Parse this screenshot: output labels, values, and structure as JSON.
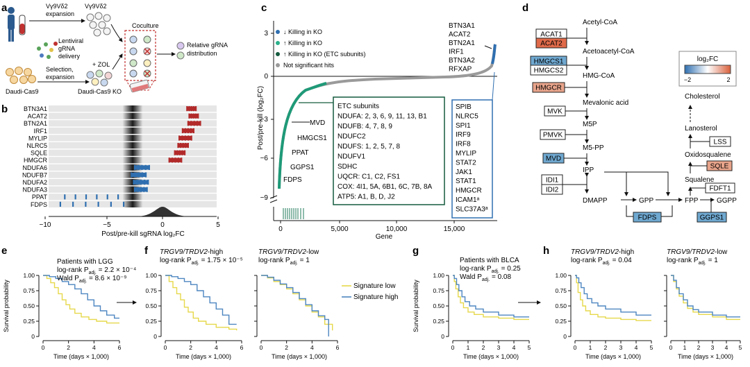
{
  "panel_labels": {
    "a": "a",
    "b": "b",
    "c": "c",
    "d": "d",
    "e": "e",
    "f": "f",
    "g": "g",
    "h": "h"
  },
  "panel_a": {
    "expansion1": [
      "Vγ9Vδ2",
      "expansion"
    ],
    "lentiviral": [
      "Lentiviral",
      "gRNA",
      "delivery"
    ],
    "selection": [
      "Selection,",
      "expansion"
    ],
    "zol": "+ ZOL",
    "daudi_cas9": "Daudi-Cas9",
    "daudi_ko": "Daudi-Cas9 KO",
    "coculture": "Coculture",
    "relative": [
      "Relative gRNA",
      "distribution"
    ],
    "vg_top": "Vγ9Vδ2"
  },
  "panel_b": {
    "genes": [
      "BTN3A1",
      "ACAT2",
      "BTN2A1",
      "IRF1",
      "MYLIP",
      "NLRC5",
      "SQLE",
      "HMGCR",
      "NDUFA6",
      "NDUFB7",
      "NDUFA2",
      "NDUFA3",
      "PPAT",
      "FDPS"
    ],
    "xlabel": "Post/pre-kill sgRNA log₂FC",
    "ticks": [
      "−10",
      "−5",
      "0",
      "5"
    ]
  },
  "panel_c": {
    "ylabel": "Post/pre-kill (log₂FC)",
    "xlabel": "Gene",
    "yticks": [
      "3",
      "0",
      "−3",
      "−6",
      "−9"
    ],
    "xticks": [
      "0",
      "5,000",
      "10,000",
      "15,000"
    ],
    "legend": [
      "↓ Killing in KO",
      "↑ Killing in KO",
      "↑ Killing in KO (ETC subunits)",
      "Not significant hits"
    ],
    "top_genes": [
      "BTN3A1",
      "ACAT2",
      "BTN2A1",
      "IRF1",
      "BTN3A2",
      "RFXAP"
    ],
    "low_genes": [
      "MVD",
      "HMGCS1",
      "PPAT",
      "GGPS1",
      "FDPS"
    ],
    "etc_box": [
      "ETC subunits",
      "NDUFA: 2, 3, 6, 9, 11, 13, B1",
      "NDUFB: 4, 7, 8, 9",
      "NDUFC2",
      "NDUFS: 1, 2, 5, 7, 8",
      "NDUFV1",
      "SDHC",
      "UQCR: C1, C2, FS1",
      "COX: 4I1, 5A, 6B1, 6C, 7B, 8A",
      "ATP5: A1, B, D, J2"
    ],
    "blue_box": [
      "SPIB",
      "NLRC5",
      "SPI1",
      "IRF9",
      "IRF8",
      "MYLIP",
      "STAT2",
      "JAK1",
      "STAT1",
      "HMGCR",
      "ICAM1ᵃ",
      "SLC37A3ᵃ"
    ]
  },
  "panel_d": {
    "metabolites": {
      "acetyl": "Acetyl-CoA",
      "acetoacetyl": "Acetoacetyl-CoA",
      "hmg": "HMG-CoA",
      "mevalonic": "Mevalonic acid",
      "m5p": "M5P",
      "m5pp": "M5-PP",
      "ipp": "IPP",
      "dmapp": "DMAPP",
      "gpp": "GPP",
      "fpp": "FPP",
      "ggpp": "GGPP",
      "squalene": "Squalene",
      "oxido": "Oxidosqualene",
      "lanosterol": "Lanosterol",
      "cholesterol": "Cholesterol"
    },
    "enzymes": {
      "acat1": "ACAT1",
      "acat2": "ACAT2",
      "hmgcs1": "HMGCS1",
      "hmgcs2": "HMGCS2",
      "hmgcr": "HMGCR",
      "mvk": "MVK",
      "pmvk": "PMVK",
      "mvd": "MVD",
      "idi1": "IDI1",
      "idi2": "IDI2",
      "fdps": "FDPS",
      "ggps1": "GGPS1",
      "fdft1": "FDFT1",
      "sqle": "SQLE",
      "lss": "LSS"
    },
    "legend_title": "log₂FC",
    "legend_ticks": [
      "−2",
      "2"
    ],
    "colors": {
      "red": "#e8a48b",
      "red_dark": "#e06a4a",
      "blue": "#6fa8d0",
      "blue_light": "#9ec6e2"
    }
  },
  "survival": {
    "ylabel": "Survival probability",
    "yticks": [
      "1.00",
      "0.75",
      "0.50",
      "0.25",
      "0"
    ],
    "xlabel": "Time (days × 1,000)",
    "xticks6": [
      "0",
      "2",
      "4",
      "6"
    ],
    "xticks5": [
      "0",
      "1",
      "2",
      "3",
      "4",
      "5"
    ],
    "e": {
      "title": "Patients with LGG",
      "l1": "log-rank P",
      "l1v": "= 2.2 × 10⁻⁴",
      "l2": "Wald P",
      "l2v": "= 8.6 × 10⁻⁹"
    },
    "f1": {
      "title": "TRGV9/TRDV2-high",
      "l1": "log-rank P",
      "l1v": "= 1.75 × 10⁻⁵"
    },
    "f2": {
      "title": "TRGV9/TRDV2-low",
      "l1": "log-rank P",
      "l1v": "= 1"
    },
    "g": {
      "title": "Patients with BLCA",
      "l1": "log-rank P",
      "l1v": "= 0.25",
      "l2": "Wald P",
      "l2v": "= 0.08"
    },
    "h1": {
      "title": "TRGV9/TRDV2-high",
      "l1": "log-rank P",
      "l1v": "= 0.04"
    },
    "h2": {
      "title": "TRGV9/TRDV2-low",
      "l1": "log-rank P",
      "l1v": "= 1"
    },
    "adj": "adj.",
    "legend": [
      "Signature low",
      "Signature high"
    ],
    "colors": {
      "low": "#e6d84a",
      "high": "#4d86c0"
    }
  }
}
